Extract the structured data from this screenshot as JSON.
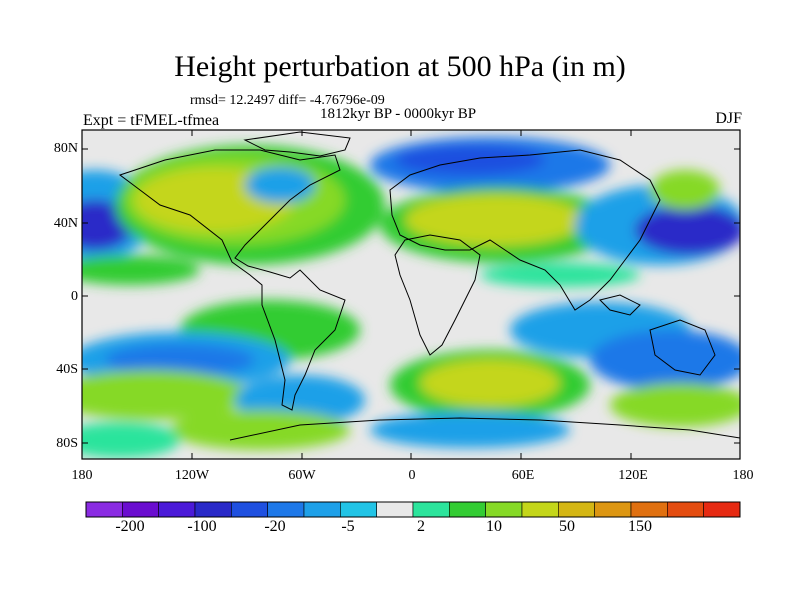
{
  "header": {
    "title": "Height perturbation at 500 hPa (in m)",
    "stats": "rmsd= 12.2497 diff= -4.76796e-09",
    "period": "1812kyr BP - 0000kyr BP",
    "experiment": "Expt = tFMEL-tfmea",
    "season": "DJF"
  },
  "axes": {
    "lat_labels": [
      "80N",
      "40N",
      "0",
      "40S",
      "80S"
    ],
    "lon_labels": [
      "180",
      "120W",
      "60W",
      "0",
      "60E",
      "120E",
      "180"
    ]
  },
  "colorbar": {
    "labels": [
      "-200",
      "-100",
      "-20",
      "-5",
      "2",
      "10",
      "50",
      "150"
    ],
    "colors": [
      "#8a2be2",
      "#6a0dcf",
      "#4b1ad8",
      "#2929c8",
      "#1f50e0",
      "#1e78e8",
      "#1ea0e8",
      "#22c4e6",
      "#e8e8e8",
      "#2ce49c",
      "#33cc33",
      "#86d926",
      "#c4d61a",
      "#d4b614",
      "#dc9612",
      "#e07010",
      "#e44c10",
      "#e62a12"
    ],
    "neutral_color": "#e8e8e8"
  },
  "map": {
    "projection": "cylindrical-equidistant",
    "lon_range": [
      -180,
      180
    ],
    "lat_range": [
      -90,
      90
    ],
    "fill_type": "filled-contour",
    "coastlines": true
  }
}
